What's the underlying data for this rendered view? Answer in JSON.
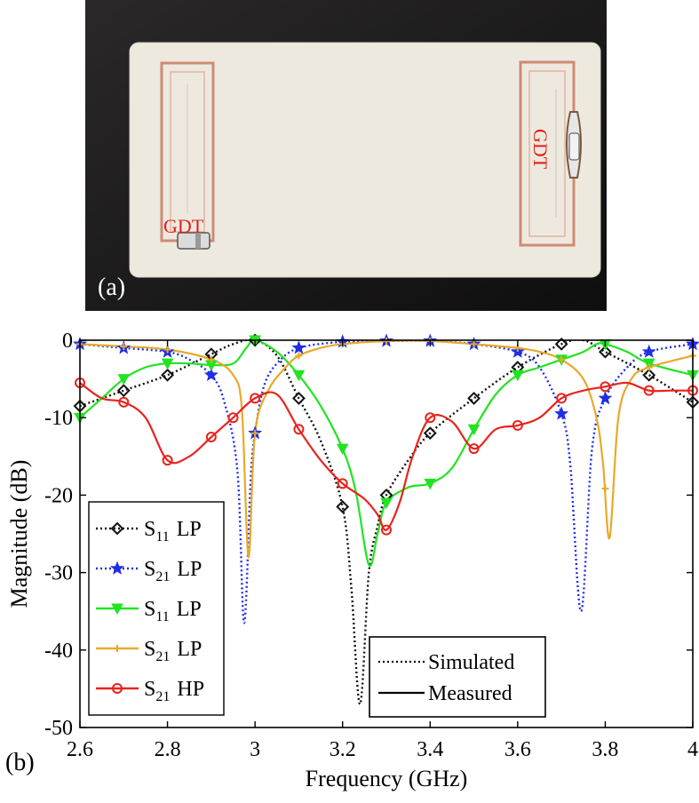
{
  "photo": {
    "panel_label": "(a)",
    "gdt_left": "GDT",
    "gdt_right": "GDT",
    "colors": {
      "background": "#1b1a1a",
      "board": "#eee9df",
      "copper": "#d08a74",
      "label": "#e0201b"
    }
  },
  "chart_data": {
    "type": "line",
    "panel_label": "(b)",
    "xlabel": "Frequency (GHz)",
    "ylabel": "Magnitude (dB)",
    "xlim": [
      2.6,
      4.0
    ],
    "ylim": [
      -50,
      0
    ],
    "xticks": [
      2.6,
      2.8,
      3.0,
      3.2,
      3.4,
      3.6,
      3.8,
      4.0
    ],
    "xtick_labels": [
      "2.6",
      "2.8",
      "3",
      "3.2",
      "3.4",
      "3.6",
      "3.8",
      "4"
    ],
    "yticks": [
      0,
      -10,
      -20,
      -30,
      -40,
      -50
    ],
    "ytick_labels": [
      "0",
      "-10",
      "-20",
      "-30",
      "-40",
      "-50"
    ],
    "grid": false,
    "legend_position": "bottom-left",
    "style_legend": [
      {
        "label": "Simulated",
        "dash": "dotted"
      },
      {
        "label": "Measured",
        "dash": "solid"
      }
    ],
    "series": [
      {
        "name": "S11 LP",
        "sub": "11",
        "mode": "LP",
        "color": "#111111",
        "dash": "dotted",
        "marker": "diamond",
        "x": [
          2.6,
          2.7,
          2.8,
          2.9,
          2.95,
          3.0,
          3.05,
          3.1,
          3.15,
          3.2,
          3.22,
          3.24,
          3.26,
          3.28,
          3.3,
          3.35,
          3.4,
          3.5,
          3.6,
          3.7,
          3.75,
          3.8,
          3.9,
          4.0
        ],
        "y": [
          -8.5,
          -6.5,
          -4.5,
          -1.8,
          -0.5,
          0,
          -2,
          -7.5,
          -13,
          -21.5,
          -32,
          -47,
          -30,
          -24,
          -20,
          -15.5,
          -12,
          -7.5,
          -3.5,
          -0.5,
          0,
          -1.5,
          -4.5,
          -8
        ],
        "marker_x": [
          2.6,
          2.7,
          2.8,
          2.9,
          3.0,
          3.1,
          3.2,
          3.3,
          3.4,
          3.5,
          3.6,
          3.7,
          3.8,
          3.9,
          4.0
        ]
      },
      {
        "name": "S21 LP",
        "sub": "21",
        "mode": "LP",
        "color": "#1f2ee6",
        "dash": "dotted",
        "marker": "star",
        "x": [
          2.6,
          2.7,
          2.8,
          2.85,
          2.9,
          2.93,
          2.96,
          2.975,
          2.99,
          3.0,
          3.02,
          3.05,
          3.1,
          3.2,
          3.3,
          3.4,
          3.5,
          3.6,
          3.65,
          3.7,
          3.72,
          3.745,
          3.77,
          3.8,
          3.85,
          3.9,
          4.0
        ],
        "y": [
          -0.5,
          -1,
          -1.5,
          -2.5,
          -4.5,
          -8,
          -17,
          -36.5,
          -18,
          -12,
          -6,
          -3,
          -1,
          -0.2,
          -0.1,
          -0.1,
          -0.5,
          -1.5,
          -3.5,
          -9.5,
          -16,
          -35,
          -14,
          -7.5,
          -3.5,
          -1.5,
          -0.5
        ],
        "marker_x": [
          2.6,
          2.7,
          2.8,
          2.9,
          3.0,
          3.1,
          3.2,
          3.3,
          3.4,
          3.5,
          3.6,
          3.7,
          3.8,
          3.9,
          4.0
        ]
      },
      {
        "name": "S11 LP",
        "sub": "11",
        "mode": "LP",
        "color": "#22e322",
        "dash": "solid",
        "marker": "triangle-down",
        "x": [
          2.6,
          2.65,
          2.7,
          2.75,
          2.8,
          2.85,
          2.9,
          2.95,
          2.98,
          3.0,
          3.05,
          3.1,
          3.15,
          3.2,
          3.23,
          3.26,
          3.28,
          3.3,
          3.35,
          3.4,
          3.45,
          3.5,
          3.55,
          3.6,
          3.65,
          3.7,
          3.75,
          3.78,
          3.8,
          3.85,
          3.9,
          4.0
        ],
        "y": [
          -10,
          -7.5,
          -5,
          -3.5,
          -3,
          -3,
          -3.2,
          -3,
          -1,
          0,
          -1.5,
          -4.5,
          -8.5,
          -14,
          -19.5,
          -29,
          -25,
          -21,
          -19,
          -18.5,
          -16.5,
          -11.5,
          -7,
          -4.5,
          -3.5,
          -2.5,
          -1.5,
          -0.5,
          -0.5,
          -1.5,
          -3,
          -4.5
        ],
        "marker_x": [
          2.6,
          2.7,
          2.8,
          2.9,
          3.0,
          3.1,
          3.2,
          3.3,
          3.4,
          3.5,
          3.6,
          3.7,
          3.8,
          3.9,
          4.0
        ]
      },
      {
        "name": "S21 LP",
        "sub": "21",
        "mode": "LP",
        "color": "#e8a92a",
        "dash": "solid",
        "marker": "plus",
        "x": [
          2.6,
          2.7,
          2.8,
          2.9,
          2.95,
          2.97,
          2.985,
          3.0,
          3.03,
          3.07,
          3.1,
          3.15,
          3.2,
          3.3,
          3.4,
          3.5,
          3.6,
          3.65,
          3.7,
          3.75,
          3.78,
          3.795,
          3.81,
          3.83,
          3.86,
          3.9,
          4.0
        ],
        "y": [
          -0.5,
          -0.8,
          -1.2,
          -2.5,
          -4.5,
          -9,
          -28,
          -12,
          -6.5,
          -3.5,
          -2,
          -1,
          -0.5,
          -0.1,
          -0.1,
          -0.5,
          -1,
          -1.5,
          -2.5,
          -5,
          -10,
          -16,
          -25.5,
          -10,
          -5,
          -3.5,
          -2
        ],
        "marker_x": [
          2.6,
          2.7,
          2.8,
          2.9,
          3.0,
          3.1,
          3.2,
          3.3,
          3.4,
          3.5,
          3.6,
          3.7,
          3.8,
          3.9,
          4.0
        ]
      },
      {
        "name": "S21 HP",
        "sub": "21",
        "mode": "HP",
        "color": "#e8231c",
        "dash": "solid",
        "marker": "circle",
        "x": [
          2.6,
          2.65,
          2.7,
          2.75,
          2.8,
          2.85,
          2.9,
          2.95,
          3.0,
          3.05,
          3.1,
          3.15,
          3.2,
          3.25,
          3.28,
          3.3,
          3.33,
          3.36,
          3.4,
          3.45,
          3.5,
          3.55,
          3.6,
          3.65,
          3.7,
          3.75,
          3.8,
          3.85,
          3.9,
          3.95,
          4.0
        ],
        "y": [
          -5.5,
          -7.5,
          -8,
          -10,
          -15.5,
          -15,
          -12.5,
          -10,
          -7.5,
          -7,
          -11.5,
          -15.5,
          -18.5,
          -20.5,
          -22.5,
          -24.5,
          -21,
          -15,
          -10,
          -10.5,
          -14,
          -11.5,
          -11,
          -10,
          -7.5,
          -6.5,
          -6,
          -5.5,
          -6.5,
          -6.5,
          -6.5
        ],
        "marker_x": [
          2.6,
          2.7,
          2.8,
          2.9,
          2.95,
          3.0,
          3.1,
          3.2,
          3.3,
          3.4,
          3.5,
          3.6,
          3.7,
          3.8,
          3.9,
          4.0
        ]
      }
    ]
  }
}
